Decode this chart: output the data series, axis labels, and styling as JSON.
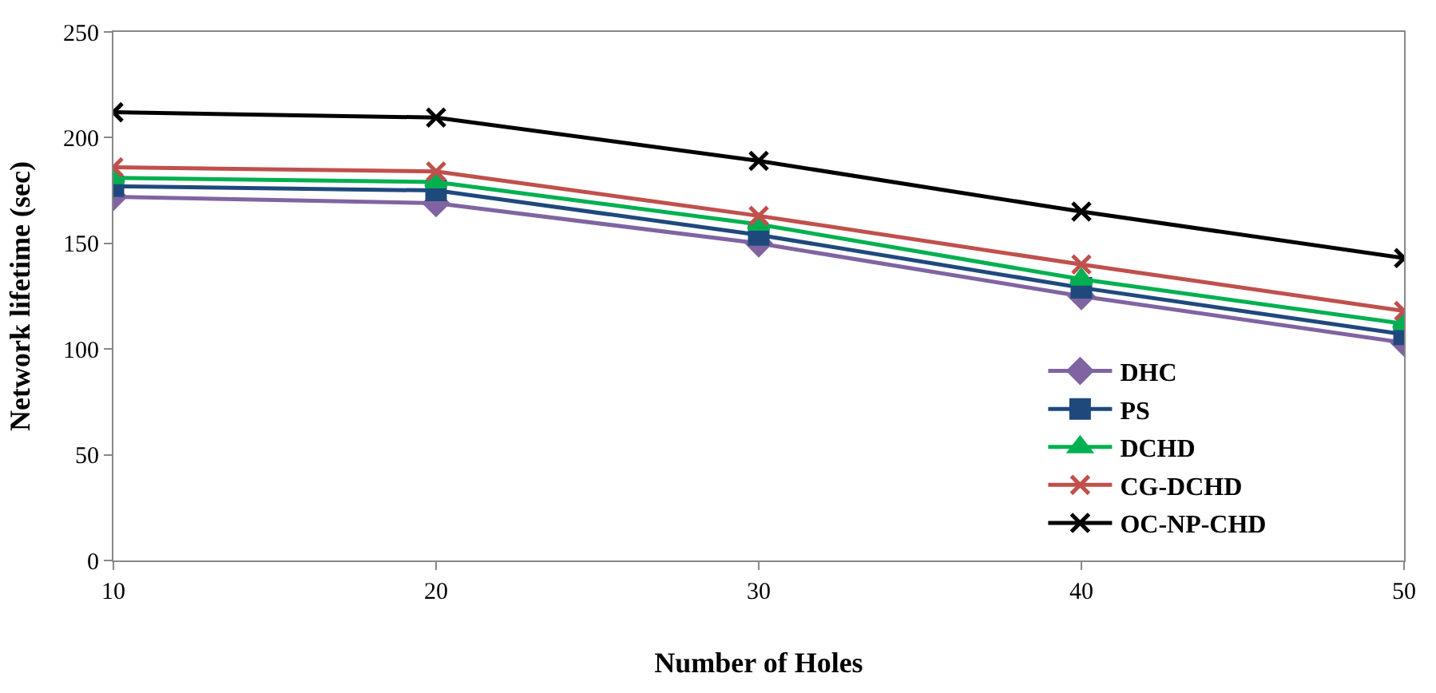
{
  "chart_data": {
    "type": "line",
    "xlabel": "Number of Holes",
    "ylabel": "Network lifetime (sec)",
    "x": [
      10,
      20,
      30,
      40,
      50
    ],
    "xlim": [
      10,
      50
    ],
    "xticks": [
      10,
      20,
      30,
      40,
      50
    ],
    "ylim": [
      0,
      250
    ],
    "yticks": [
      0,
      50,
      100,
      150,
      200,
      250
    ],
    "legend": "bottom right",
    "series": [
      {
        "name": "DHC",
        "color": "#8064a2",
        "marker": "diamond",
        "values": [
          172,
          169,
          150,
          125,
          103
        ]
      },
      {
        "name": "PS",
        "color": "#1f497d",
        "marker": "square",
        "values": [
          177,
          175,
          154,
          129,
          107
        ]
      },
      {
        "name": "DCHD",
        "color": "#00b050",
        "marker": "triangle",
        "values": [
          181,
          179,
          159,
          133,
          112
        ]
      },
      {
        "name": "CG-DCHD",
        "color": "#c0504d",
        "marker": "cross",
        "values": [
          186,
          184,
          163,
          140,
          118
        ]
      },
      {
        "name": "OC-NP-CHD",
        "color": "#000000",
        "marker": "cross",
        "values": [
          212,
          209.5,
          189,
          165,
          143
        ]
      }
    ]
  }
}
